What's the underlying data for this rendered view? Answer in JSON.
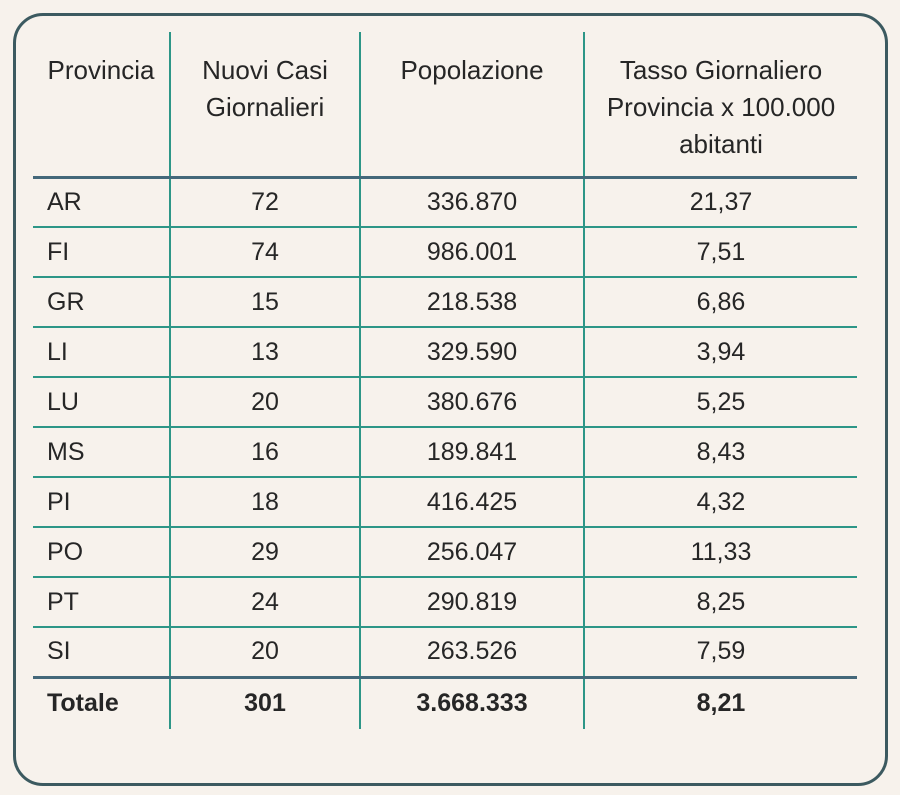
{
  "theme": {
    "background": "#f7f2ec",
    "card_border": "#3c5a60",
    "teal_line": "#2d9687",
    "slate_line": "#44687a",
    "text": "#262626"
  },
  "table": {
    "columns": [
      "Provincia",
      "Nuovi Casi Giornalieri",
      "Popolazione",
      "Tasso Giornaliero Provincia x 100.000 abitanti"
    ],
    "rows": [
      {
        "provincia": "AR",
        "nuovi_casi": "72",
        "popolazione": "336.870",
        "tasso": "21,37",
        "is_total": false
      },
      {
        "provincia": "FI",
        "nuovi_casi": "74",
        "popolazione": "986.001",
        "tasso": "7,51",
        "is_total": false
      },
      {
        "provincia": "GR",
        "nuovi_casi": "15",
        "popolazione": "218.538",
        "tasso": "6,86",
        "is_total": false
      },
      {
        "provincia": "LI",
        "nuovi_casi": "13",
        "popolazione": "329.590",
        "tasso": "3,94",
        "is_total": false
      },
      {
        "provincia": "LU",
        "nuovi_casi": "20",
        "popolazione": "380.676",
        "tasso": "5,25",
        "is_total": false
      },
      {
        "provincia": "MS",
        "nuovi_casi": "16",
        "popolazione": "189.841",
        "tasso": "8,43",
        "is_total": false
      },
      {
        "provincia": "PI",
        "nuovi_casi": "18",
        "popolazione": "416.425",
        "tasso": "4,32",
        "is_total": false
      },
      {
        "provincia": "PO",
        "nuovi_casi": "29",
        "popolazione": "256.047",
        "tasso": "11,33",
        "is_total": false
      },
      {
        "provincia": "PT",
        "nuovi_casi": "24",
        "popolazione": "290.819",
        "tasso": "8,25",
        "is_total": false
      },
      {
        "provincia": "SI",
        "nuovi_casi": "20",
        "popolazione": "263.526",
        "tasso": "7,59",
        "is_total": false
      },
      {
        "provincia": "Totale",
        "nuovi_casi": "301",
        "popolazione": "3.668.333",
        "tasso": "8,21",
        "is_total": true
      }
    ]
  },
  "chart_data": {
    "type": "table",
    "columns": [
      "Provincia",
      "Nuovi Casi Giornalieri",
      "Popolazione",
      "Tasso Giornaliero Provincia x 100.000 abitanti"
    ],
    "rows": [
      [
        "AR",
        72,
        336870,
        21.37
      ],
      [
        "FI",
        74,
        986001,
        7.51
      ],
      [
        "GR",
        15,
        218538,
        6.86
      ],
      [
        "LI",
        13,
        329590,
        3.94
      ],
      [
        "LU",
        20,
        380676,
        5.25
      ],
      [
        "MS",
        16,
        189841,
        8.43
      ],
      [
        "PI",
        18,
        416425,
        4.32
      ],
      [
        "PO",
        29,
        256047,
        11.33
      ],
      [
        "PT",
        24,
        290819,
        8.25
      ],
      [
        "SI",
        20,
        263526,
        7.59
      ],
      [
        "Totale",
        301,
        3668333,
        8.21
      ]
    ]
  }
}
